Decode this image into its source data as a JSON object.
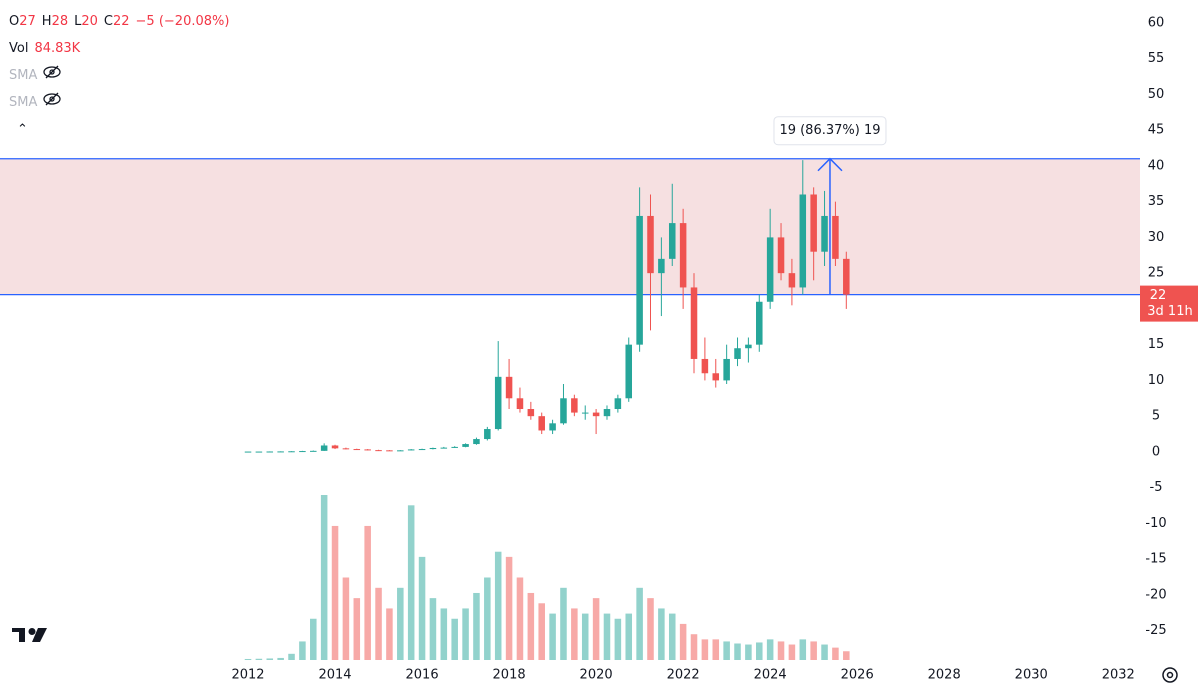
{
  "header": {
    "ohlc": [
      {
        "label": "O",
        "value": "27"
      },
      {
        "label": "H",
        "value": "28"
      },
      {
        "label": "L",
        "value": "20"
      },
      {
        "label": "C",
        "value": "22"
      }
    ],
    "change": "−5 (−20.08%)",
    "volume_label": "Vol",
    "volume_value": "84.83K",
    "indicators": [
      "SMA",
      "SMA"
    ]
  },
  "chart_data": {
    "type": "candlestick",
    "x": [
      2012,
      2012.25,
      2012.5,
      2012.75,
      2013,
      2013.25,
      2013.5,
      2013.75,
      2014,
      2014.25,
      2014.5,
      2014.75,
      2015,
      2015.25,
      2015.5,
      2015.75,
      2016,
      2016.25,
      2016.5,
      2016.75,
      2017,
      2017.25,
      2017.5,
      2017.75,
      2018,
      2018.25,
      2018.5,
      2018.75,
      2019,
      2019.25,
      2019.5,
      2019.75,
      2020,
      2020.25,
      2020.5,
      2020.75,
      2021,
      2021.25,
      2021.5,
      2021.75,
      2022,
      2022.25,
      2022.5,
      2022.75,
      2023,
      2023.25,
      2023.5,
      2023.75,
      2024,
      2024.25,
      2024.5,
      2024.75,
      2025,
      2025.25,
      2025.5,
      2025.75
    ],
    "open": [
      0.05,
      0.05,
      0.05,
      0.06,
      0.07,
      0.09,
      0.12,
      0.15,
      0.9,
      0.5,
      0.4,
      0.35,
      0.25,
      0.22,
      0.2,
      0.22,
      0.35,
      0.4,
      0.55,
      0.6,
      0.7,
      1.1,
      1.8,
      3.2,
      10.5,
      7.5,
      6,
      5,
      3,
      4,
      7.5,
      5.5,
      5.5,
      5,
      6,
      7.5,
      15,
      33,
      25,
      27,
      32,
      23,
      13,
      11,
      10,
      13,
      14.5,
      15,
      21,
      30,
      25,
      23,
      36,
      28,
      33,
      27
    ],
    "high": [
      0.06,
      0.06,
      0.07,
      0.08,
      0.1,
      0.15,
      0.2,
      1.2,
      1,
      0.6,
      0.45,
      0.4,
      0.3,
      0.25,
      0.25,
      0.4,
      0.45,
      0.6,
      0.7,
      0.8,
      1.2,
      2,
      3.5,
      15.5,
      13,
      9,
      7,
      5.5,
      4.5,
      9.5,
      8,
      6.5,
      6,
      6.5,
      8,
      16,
      37,
      36,
      30,
      37.5,
      34,
      25,
      16,
      13,
      15,
      16,
      16,
      22,
      34,
      32,
      27,
      40.8,
      37,
      36.5,
      35,
      28
    ],
    "low": [
      0.04,
      0.04,
      0.05,
      0.05,
      0.06,
      0.08,
      0.1,
      0.14,
      0.4,
      0.35,
      0.3,
      0.2,
      0.2,
      0.18,
      0.15,
      0.2,
      0.3,
      0.35,
      0.5,
      0.55,
      0.65,
      1,
      1.6,
      3,
      6,
      5.5,
      4.5,
      2.5,
      2.5,
      3.8,
      5,
      4.5,
      2.5,
      4.5,
      5.5,
      7,
      14,
      17,
      19,
      26,
      20,
      11,
      10,
      9,
      9.5,
      12,
      12.5,
      14,
      20,
      24,
      20.5,
      22,
      24,
      26,
      26,
      20
    ],
    "close": [
      0.05,
      0.05,
      0.06,
      0.07,
      0.09,
      0.12,
      0.15,
      0.9,
      0.5,
      0.4,
      0.35,
      0.25,
      0.22,
      0.2,
      0.22,
      0.35,
      0.4,
      0.55,
      0.6,
      0.7,
      1.1,
      1.8,
      3.2,
      10.5,
      7.5,
      6,
      5,
      3,
      4,
      7.5,
      5.5,
      5.5,
      5,
      6,
      7.5,
      15,
      33,
      25,
      27,
      32,
      23,
      13,
      11,
      10,
      13,
      14.5,
      15,
      21,
      30,
      25,
      23,
      36,
      28,
      33,
      27,
      22
    ],
    "volume": [
      10000,
      12000,
      15000,
      20000,
      60000,
      180000,
      400000,
      1600000,
      1300000,
      800000,
      600000,
      1300000,
      700000,
      500000,
      700000,
      1500000,
      1000000,
      600000,
      500000,
      400000,
      500000,
      650000,
      800000,
      1050000,
      1000000,
      800000,
      650000,
      550000,
      450000,
      700000,
      500000,
      450000,
      600000,
      450000,
      400000,
      450000,
      700000,
      600000,
      500000,
      450000,
      350000,
      250000,
      200000,
      200000,
      180000,
      160000,
      150000,
      170000,
      200000,
      180000,
      150000,
      200000,
      180000,
      150000,
      120000,
      84830
    ],
    "up_color": "#26a69a",
    "down_color": "#ef5350",
    "xlim": [
      2006.3,
      2032.5
    ],
    "xticks": [
      2012,
      2014,
      2016,
      2018,
      2020,
      2022,
      2024,
      2026,
      2028,
      2030,
      2032
    ],
    "ylim": [
      -29.1,
      63.2
    ],
    "yticks": [
      -25,
      -20,
      -15,
      -10,
      -5,
      0,
      5,
      10,
      15,
      20,
      25,
      30,
      35,
      40,
      45,
      50,
      55,
      60
    ],
    "last_price": 22,
    "countdown": "3d 11h",
    "range": {
      "low": 22,
      "high": 41,
      "label": "19 (86.37%) 19",
      "color": "#2962ff"
    }
  }
}
